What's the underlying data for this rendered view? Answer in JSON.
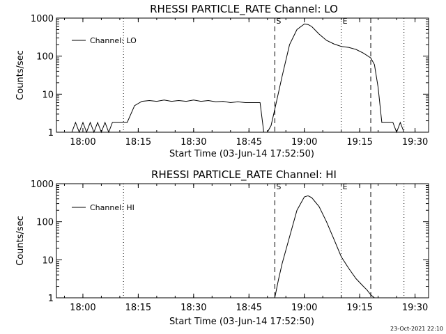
{
  "chart_data": [
    {
      "type": "line",
      "title": "RHESSI PARTICLE_RATE Channel: LO",
      "xlabel": "Start Time (03-Jun-14 17:52:50)",
      "ylabel": "Counts/sec",
      "yscale": "log",
      "ylim": [
        1,
        1000
      ],
      "xlim": [
        "17:52:50",
        "19:33:40"
      ],
      "x_ticks": [
        "18:00",
        "18:15",
        "18:30",
        "18:45",
        "19:00",
        "19:15",
        "19:30"
      ],
      "y_ticks": [
        "1",
        "10",
        "100",
        "1000"
      ],
      "legend": "top-left",
      "grid": false,
      "series": [
        {
          "name": "Channel: LO",
          "x": [
            "17:52:50",
            "17:55",
            "17:57",
            "17:58",
            "17:59",
            "18:00",
            "18:01",
            "18:02",
            "18:03",
            "18:04",
            "18:05",
            "18:06",
            "18:07",
            "18:08",
            "18:09",
            "18:10",
            "18:11",
            "18:12",
            "18:13",
            "18:14",
            "18:16",
            "18:18",
            "18:20",
            "18:22",
            "18:24",
            "18:26",
            "18:28",
            "18:30",
            "18:32",
            "18:34",
            "18:36",
            "18:38",
            "18:40",
            "18:42",
            "18:44",
            "18:46",
            "18:48",
            "18:49",
            "18:50",
            "18:51",
            "18:52",
            "18:54",
            "18:56",
            "18:58",
            "19:00",
            "19:01",
            "19:02",
            "19:04",
            "19:06",
            "19:08",
            "19:10",
            "19:12",
            "19:14",
            "19:16",
            "19:18",
            "19:19",
            "19:20",
            "19:21",
            "19:22",
            "19:24",
            "19:25",
            "19:26",
            "19:27",
            "19:28"
          ],
          "values": [
            1,
            1,
            1,
            1.8,
            1,
            1.8,
            1,
            1.8,
            1,
            1.8,
            1,
            1.8,
            1,
            1.8,
            1.8,
            1.8,
            1.8,
            1.8,
            3,
            5,
            6.5,
            6.8,
            6.5,
            7,
            6.5,
            6.8,
            6.5,
            7,
            6.5,
            6.8,
            6.3,
            6.5,
            6,
            6.3,
            6,
            6,
            6,
            1,
            1,
            1.5,
            4,
            30,
            200,
            500,
            700,
            680,
            600,
            380,
            260,
            210,
            180,
            170,
            150,
            120,
            90,
            60,
            15,
            1.8,
            1.8,
            1.8,
            1,
            1.8,
            1,
            1
          ]
        }
      ],
      "markers": [
        {
          "type": "dotted",
          "x": "18:11"
        },
        {
          "type": "dashed",
          "x": "18:52",
          "label": "S"
        },
        {
          "type": "dotted",
          "x": "19:10",
          "label": "E"
        },
        {
          "type": "dashed",
          "x": "19:18"
        },
        {
          "type": "dotted",
          "x": "19:27"
        }
      ]
    },
    {
      "type": "line",
      "title": "RHESSI PARTICLE_RATE Channel: HI",
      "xlabel": "Start Time (03-Jun-14 17:52:50)",
      "ylabel": "Counts/sec",
      "yscale": "log",
      "ylim": [
        1,
        1000
      ],
      "xlim": [
        "17:52:50",
        "19:33:40"
      ],
      "x_ticks": [
        "18:00",
        "18:15",
        "18:30",
        "18:45",
        "19:00",
        "19:15",
        "19:30"
      ],
      "y_ticks": [
        "1",
        "10",
        "100",
        "1000"
      ],
      "legend": "top-left",
      "grid": false,
      "series": [
        {
          "name": "Channel: HI",
          "x": [
            "18:52",
            "18:53",
            "18:54",
            "18:56",
            "18:58",
            "19:00",
            "19:01",
            "19:02",
            "19:04",
            "19:06",
            "19:08",
            "19:10",
            "19:12",
            "19:14",
            "19:16",
            "19:17",
            "19:18",
            "19:19"
          ],
          "values": [
            1,
            3,
            8,
            40,
            200,
            450,
            480,
            430,
            250,
            100,
            35,
            12,
            6,
            3.2,
            2,
            1.6,
            1.2,
            1
          ]
        }
      ],
      "markers": [
        {
          "type": "dotted",
          "x": "18:11"
        },
        {
          "type": "dashed",
          "x": "18:52",
          "label": "S"
        },
        {
          "type": "dotted",
          "x": "19:10",
          "label": "E"
        },
        {
          "type": "dashed",
          "x": "19:18"
        },
        {
          "type": "dotted",
          "x": "19:27"
        }
      ]
    }
  ],
  "footer": {
    "timestamp": "23-Oct-2021 22:10"
  }
}
